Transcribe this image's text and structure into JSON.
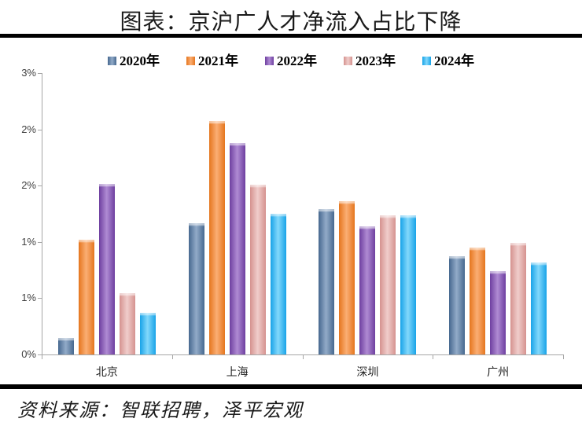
{
  "header": {
    "title": "图表：京沪广人才净流入占比下降"
  },
  "footer": {
    "source": "资料来源：智联招聘，泽平宏观"
  },
  "chart_data": {
    "type": "bar",
    "title": "图表：京沪广人才净流入占比下降",
    "categories": [
      "北京",
      "上海",
      "深圳",
      "广州"
    ],
    "series": [
      {
        "name": "2020年",
        "values": [
          0.18,
          1.4,
          1.55,
          1.05
        ],
        "color_edge": "#46688F",
        "color_center": "#92ABC8"
      },
      {
        "name": "2021年",
        "values": [
          1.22,
          2.49,
          1.63,
          1.14
        ],
        "color_edge": "#E5761E",
        "color_center": "#FBAE74"
      },
      {
        "name": "2022年",
        "values": [
          1.82,
          2.25,
          1.37,
          0.89
        ],
        "color_edge": "#6E3FA0",
        "color_center": "#AF8BD3"
      },
      {
        "name": "2023年",
        "values": [
          0.65,
          1.81,
          1.48,
          1.19
        ],
        "color_edge": "#D5928F",
        "color_center": "#F0CDCB"
      },
      {
        "name": "2024年",
        "values": [
          0.44,
          1.5,
          1.48,
          0.98
        ],
        "color_edge": "#18A3E8",
        "color_center": "#82D8FB"
      }
    ],
    "unit": "%",
    "ylim": [
      0,
      3
    ],
    "y_ticks": [
      {
        "value": 0.0,
        "label": "0%"
      },
      {
        "value": 0.6,
        "label": "1%"
      },
      {
        "value": 1.2,
        "label": "1%"
      },
      {
        "value": 1.8,
        "label": "2%"
      },
      {
        "value": 2.4,
        "label": "2%"
      },
      {
        "value": 3.0,
        "label": "3%"
      }
    ],
    "xlabel": "",
    "ylabel": "",
    "legend_position": "top",
    "grid": false
  },
  "colors": {
    "axis": "#A6A6A6",
    "divider": "#000000",
    "title_text": "#1A1A1A",
    "tick_text": "#404040"
  }
}
